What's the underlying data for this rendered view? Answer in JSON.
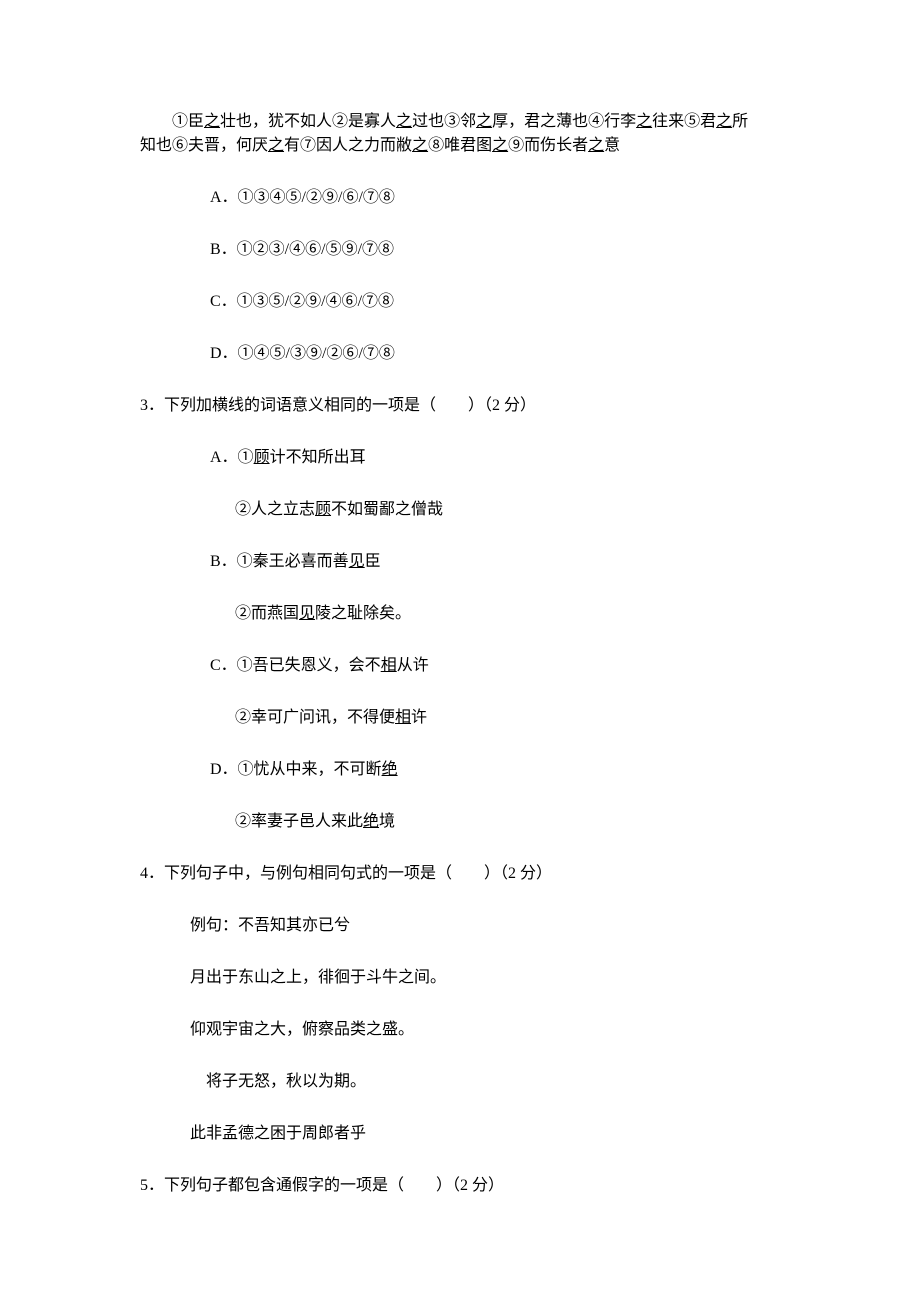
{
  "intro": {
    "line1_pre": "①臣",
    "line1_u1": "之",
    "line1_mid1": "壮也，犹不如人②是寡人",
    "line1_u2": "之",
    "line1_mid2": "过也③邻",
    "line1_u3": "之",
    "line1_mid3": "厚，君之薄也④行李",
    "line1_u4": "之",
    "line1_mid4": "往来⑤君",
    "line1_u5": "之",
    "line1_end": "所",
    "line2_pre": "知也⑥夫晋，何厌",
    "line2_u1": "之",
    "line2_mid1": "有⑦因人之力而敝",
    "line2_u2": "之",
    "line2_mid2": "⑧唯君图",
    "line2_u3": "之",
    "line2_mid3": "⑨而伤长者",
    "line2_u4": "之",
    "line2_end": "意"
  },
  "opts2": {
    "a": "A．①③④⑤/②⑨/⑥/⑦⑧",
    "b": "B．①②③/④⑥/⑤⑨/⑦⑧",
    "c": "C．①③⑤/②⑨/④⑥/⑦⑧",
    "d": "D．①④⑤/③⑨/②⑥/⑦⑧"
  },
  "q3": {
    "stem": "3．下列加横线的词语意义相同的一项是（　　）（2 分）",
    "a1_pre": "A．①",
    "a1_u": "顾",
    "a1_post": "计不知所出耳",
    "a2_pre": "②人之立志",
    "a2_u": "顾",
    "a2_post": "不如蜀鄙之僧哉",
    "b1_pre": "B．①秦王必喜而善",
    "b1_u": "见",
    "b1_post": "臣",
    "b2_pre": "②而燕国",
    "b2_u": "见",
    "b2_post": "陵之耻除矣。",
    "c1_pre": "C．①吾已失恩义，会不",
    "c1_u": "相",
    "c1_post": "从许",
    "c2_pre": "②幸可广问讯，不得便",
    "c2_u": "相",
    "c2_post": "许",
    "d1_pre": "D．①忧从中来，不可断",
    "d1_u": "绝",
    "d2_pre": "②率妻子邑人来此",
    "d2_u": "绝",
    "d2_post": "境"
  },
  "q4": {
    "stem": "4．下列句子中，与例句相同句式的一项是（　　）（2 分）",
    "ex": "例句：不吾知其亦已兮",
    "l1": "月出于东山之上，徘徊于斗牛之间。",
    "l2": "仰观宇宙之大，俯察品类之盛。",
    "l3": "　将子无怒，秋以为期。",
    "l4": "此非孟德之困于周郎者乎"
  },
  "q5": {
    "stem": "5．下列句子都包含通假字的一项是（　　）（2 分）"
  }
}
